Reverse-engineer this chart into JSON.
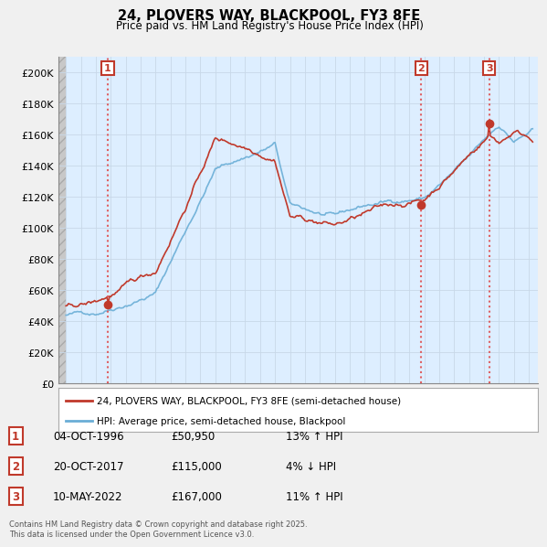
{
  "title": "24, PLOVERS WAY, BLACKPOOL, FY3 8FE",
  "subtitle": "Price paid vs. HM Land Registry's House Price Index (HPI)",
  "ylim": [
    0,
    200000
  ],
  "yticks": [
    0,
    20000,
    40000,
    60000,
    80000,
    100000,
    120000,
    140000,
    160000,
    180000,
    200000
  ],
  "ytick_labels": [
    "£0",
    "£20K",
    "£40K",
    "£60K",
    "£80K",
    "£100K",
    "£120K",
    "£140K",
    "£160K",
    "£180K",
    "£200K"
  ],
  "hpi_color": "#6aaed6",
  "price_color": "#c0392b",
  "vline_color": "#e05050",
  "background_color": "#f0f0f0",
  "plot_bg_color": "#ddeeff",
  "sale1_date": 1996.8,
  "sale1_price": 50950,
  "sale2_date": 2017.8,
  "sale2_price": 115000,
  "sale3_date": 2022.35,
  "sale3_price": 167000,
  "legend_line1": "24, PLOVERS WAY, BLACKPOOL, FY3 8FE (semi-detached house)",
  "legend_line2": "HPI: Average price, semi-detached house, Blackpool",
  "table_rows": [
    [
      "1",
      "04-OCT-1996",
      "£50,950",
      "13% ↑ HPI"
    ],
    [
      "2",
      "20-OCT-2017",
      "£115,000",
      "4% ↓ HPI"
    ],
    [
      "3",
      "10-MAY-2022",
      "£167,000",
      "11% ↑ HPI"
    ]
  ],
  "footnote": "Contains HM Land Registry data © Crown copyright and database right 2025.\nThis data is licensed under the Open Government Licence v3.0."
}
